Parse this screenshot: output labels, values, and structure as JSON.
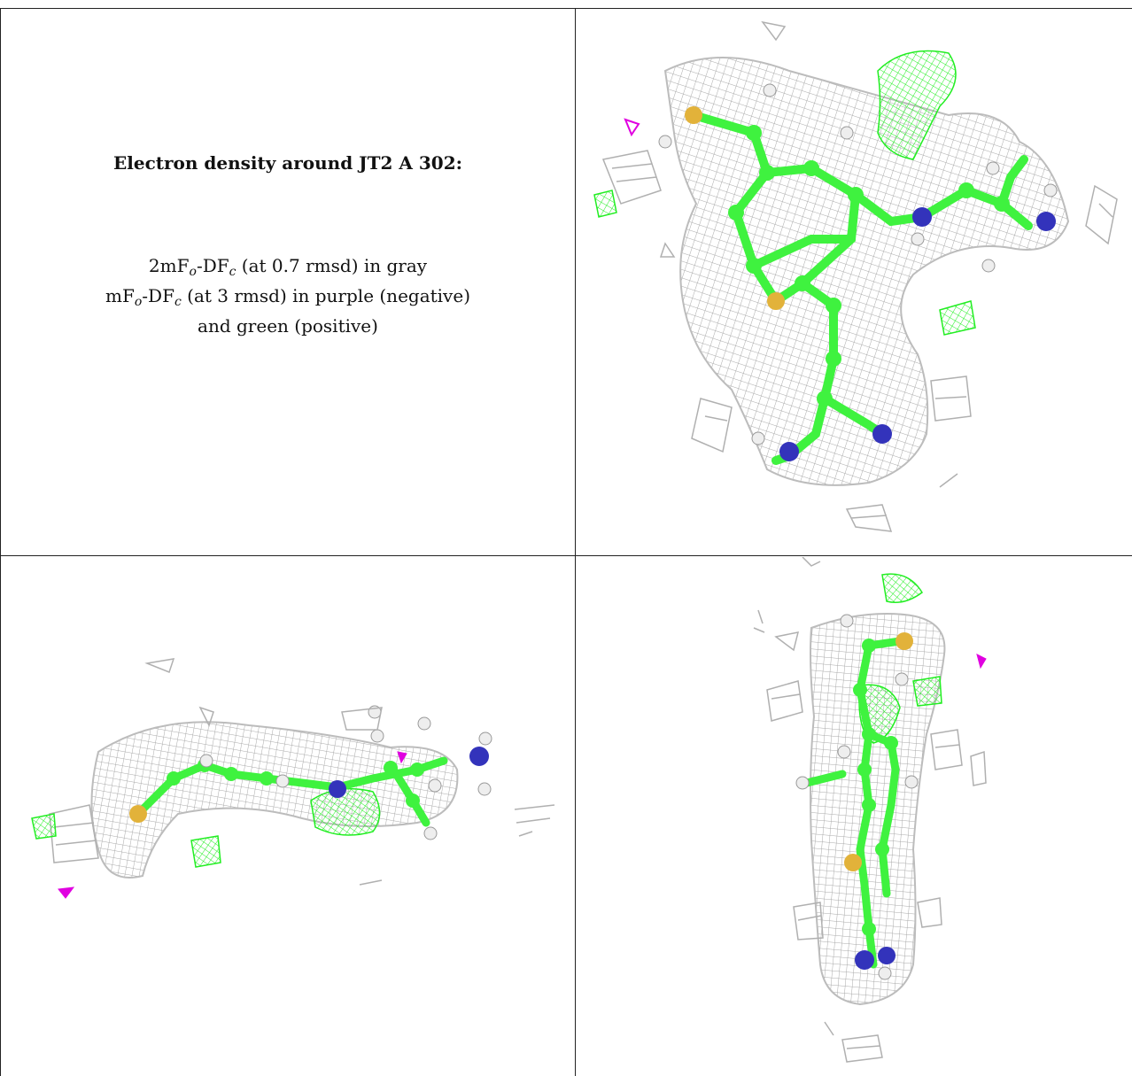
{
  "caption": {
    "title": "Electron density around JT2 A 302:",
    "line1": {
      "pre": "2mF",
      "sub1": "o",
      "mid": "-DF",
      "sub2": "c",
      "post": " (at 0.7 rmsd) in gray"
    },
    "line2": {
      "pre": "mF",
      "sub1": "o",
      "mid": "-DF",
      "sub2": "c",
      "post": " (at 3 rmsd) in purple (negative)"
    },
    "line3": "and green (positive)"
  },
  "colors": {
    "mesh": "#a9a9a9",
    "carbon": "#3ff23f",
    "nitrogen": "#3333bb",
    "sulfur": "#e2b23a",
    "hydrogen": "#eeeeee",
    "positive": "#22ee22",
    "negative": "#e000e0"
  },
  "panels": [
    {
      "view": "top-right",
      "icon": "density-map-view-1"
    },
    {
      "view": "bottom-left",
      "icon": "density-map-view-2"
    },
    {
      "view": "bottom-right",
      "icon": "density-map-view-3"
    }
  ]
}
